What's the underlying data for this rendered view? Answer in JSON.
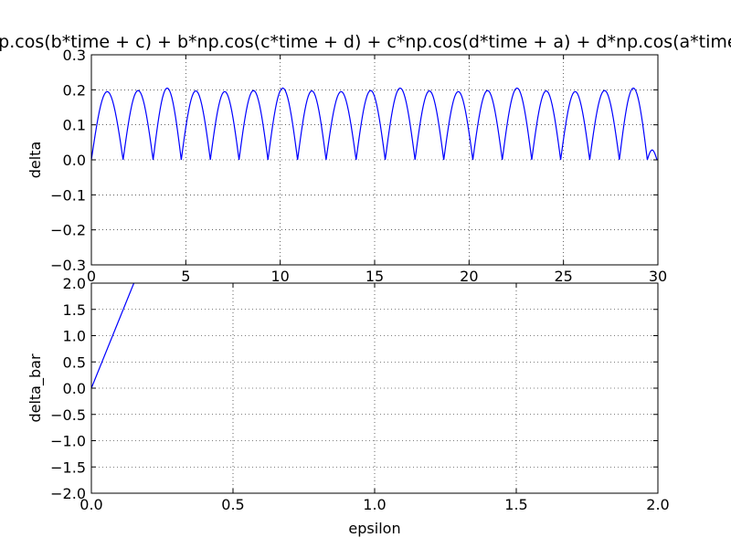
{
  "figure": {
    "title": "a*np.cos(b*time + c) + b*np.cos(c*time + d) + c*np.cos(d*time + a) + d*np.cos(a*time + b)"
  },
  "chart_data": [
    {
      "type": "line",
      "title": "a*np.cos(b*time + c) + b*np.cos(c*time + d) + c*np.cos(d*time + a) + d*np.cos(a*time + b)",
      "xlabel": "",
      "ylabel": "delta",
      "xlim": [
        0,
        30
      ],
      "ylim": [
        -0.3,
        0.3
      ],
      "xticks": [
        "0",
        "5",
        "10",
        "15",
        "20",
        "25",
        "30"
      ],
      "yticks": [
        "0.3",
        "0.2",
        "0.1",
        "0.0",
        "−0.1",
        "−0.2",
        "−0.3"
      ],
      "grid": true,
      "series": [
        {
          "color": "#0000ff",
          "zeros": [
            0,
            1.68,
            3.27,
            4.76,
            6.3,
            7.82,
            9.35,
            10.92,
            12.43,
            14.02,
            15.56,
            17.14,
            18.66,
            20.2,
            21.76,
            23.32,
            24.85,
            26.39,
            27.96,
            29.44,
            29.95
          ],
          "peaks": [
            0.195,
            0.198,
            0.205,
            0.197,
            0.195,
            0.198,
            0.205,
            0.197,
            0.195,
            0.198,
            0.205,
            0.197,
            0.195,
            0.198,
            0.205,
            0.197,
            0.195,
            0.198,
            0.205,
            0.028
          ]
        }
      ]
    },
    {
      "type": "line",
      "title": "",
      "xlabel": "epsilon",
      "ylabel": "delta_bar",
      "xlim": [
        0,
        2.0
      ],
      "ylim": [
        -2.0,
        2.0
      ],
      "xticks": [
        "0.0",
        "0.5",
        "1.0",
        "1.5",
        "2.0"
      ],
      "yticks": [
        "2.0",
        "1.5",
        "1.0",
        "0.5",
        "0.0",
        "−0.5",
        "−1.0",
        "−1.5",
        "−2.0"
      ],
      "grid": true,
      "series": [
        {
          "color": "#0000ff",
          "x": [
            0.0,
            0.15
          ],
          "y": [
            0.0,
            2.0
          ]
        }
      ]
    }
  ]
}
